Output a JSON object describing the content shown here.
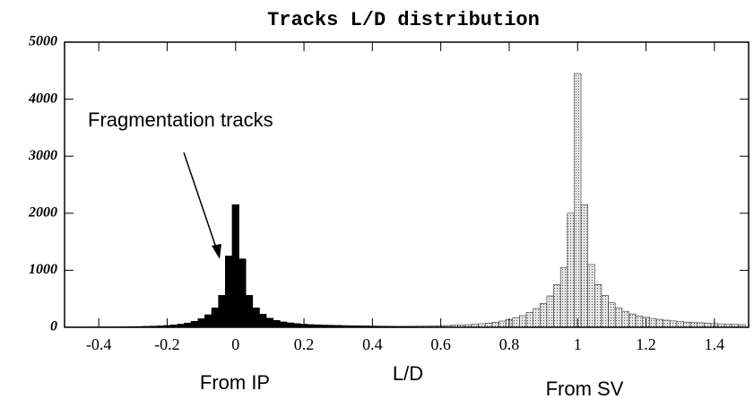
{
  "chart_data": {
    "type": "histogram",
    "title": "Tracks L/D distribution",
    "x_label": "L/D",
    "annotations": [
      "Fragmentation tracks"
    ],
    "bins": [
      -0.49,
      -0.47,
      -0.45,
      -0.43,
      -0.41,
      -0.39,
      -0.37,
      -0.35,
      -0.33,
      -0.31,
      -0.29,
      -0.27,
      -0.25,
      -0.23,
      -0.21,
      -0.19,
      -0.17,
      -0.15,
      -0.13,
      -0.11,
      -0.09,
      -0.07,
      -0.05,
      -0.03,
      -0.01,
      0.01,
      0.03,
      0.05,
      0.07,
      0.09,
      0.11,
      0.13,
      0.15,
      0.17,
      0.19,
      0.21,
      0.23,
      0.25,
      0.27,
      0.29,
      0.31,
      0.33,
      0.35,
      0.37,
      0.39,
      0.41,
      0.43,
      0.45,
      0.47,
      0.49,
      0.51,
      0.53,
      0.55,
      0.57,
      0.59,
      0.61,
      0.63,
      0.65,
      0.67,
      0.69,
      0.71,
      0.73,
      0.75,
      0.77,
      0.79,
      0.81,
      0.83,
      0.85,
      0.87,
      0.89,
      0.91,
      0.93,
      0.95,
      0.97,
      0.99,
      1.01,
      1.03,
      1.05,
      1.07,
      1.09,
      1.11,
      1.13,
      1.15,
      1.17,
      1.19,
      1.21,
      1.23,
      1.25,
      1.27,
      1.29,
      1.31,
      1.33,
      1.35,
      1.37,
      1.39,
      1.41,
      1.43,
      1.45,
      1.47,
      1.49
    ],
    "series": [
      {
        "name": "From IP",
        "color": "#000000",
        "values": [
          5,
          5,
          5,
          6,
          6,
          7,
          8,
          9,
          10,
          12,
          14,
          17,
          20,
          25,
          32,
          42,
          55,
          75,
          105,
          150,
          220,
          340,
          560,
          1250,
          2150,
          1200,
          560,
          340,
          230,
          160,
          120,
          95,
          78,
          65,
          55,
          48,
          43,
          39,
          36,
          33,
          30,
          28,
          26,
          24,
          22,
          20,
          18,
          16,
          14,
          12,
          10,
          8,
          6,
          5,
          4,
          3,
          2,
          2,
          1,
          1,
          0,
          0,
          0,
          0,
          0,
          0,
          0,
          0,
          0,
          0,
          0,
          0,
          0,
          0,
          0,
          0,
          0,
          0,
          0,
          0,
          0,
          0,
          0,
          0,
          0,
          0,
          0,
          0,
          0,
          0,
          0,
          0,
          0,
          0,
          0,
          0,
          0,
          0,
          0
        ]
      },
      {
        "name": "From SV",
        "color": "#bdbdbd",
        "values": [
          0,
          0,
          0,
          0,
          0,
          0,
          0,
          0,
          0,
          0,
          0,
          0,
          0,
          0,
          0,
          0,
          0,
          0,
          0,
          0,
          0,
          0,
          0,
          0,
          0,
          0,
          0,
          0,
          0,
          0,
          0,
          0,
          0,
          0,
          0,
          0,
          0,
          0,
          0,
          0,
          8,
          9,
          10,
          11,
          12,
          13,
          14,
          15,
          16,
          18,
          19,
          21,
          23,
          25,
          28,
          31,
          35,
          40,
          46,
          54,
          63,
          75,
          90,
          110,
          135,
          165,
          205,
          260,
          330,
          420,
          550,
          750,
          1050,
          2000,
          4450,
          2150,
          1100,
          750,
          560,
          430,
          340,
          280,
          235,
          200,
          175,
          155,
          140,
          125,
          112,
          100,
          92,
          85,
          78,
          72,
          66,
          61,
          56,
          52,
          48
        ]
      }
    ],
    "xlim": [
      -0.5,
      1.5
    ],
    "xticks": [
      -0.4,
      -0.2,
      0,
      0.2,
      0.4,
      0.6,
      0.8,
      1,
      1.2,
      1.4
    ],
    "ylim": [
      0,
      5000
    ],
    "yticks": [
      0,
      1000,
      2000,
      3000,
      4000,
      5000
    ]
  }
}
